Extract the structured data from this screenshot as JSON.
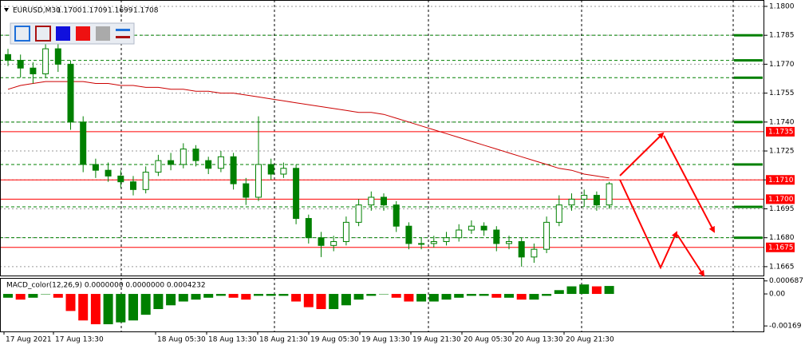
{
  "chart_data": {
    "type": "candlestick",
    "symbol": "EURUSD,M30",
    "quote": [
      "1.1700",
      "1.1709",
      "1.1699",
      "1.1708"
    ],
    "color": "#008000",
    "open": [
      1.1775,
      1.1772,
      1.1768,
      1.1765,
      1.1778,
      1.177,
      1.174,
      1.1718,
      1.1715,
      1.1712,
      1.1709,
      1.1705,
      1.1714,
      1.172,
      1.1718,
      1.1726,
      1.172,
      1.1716,
      1.1722,
      1.1708,
      1.1701,
      1.1718,
      1.1713,
      1.1716,
      1.169,
      1.168,
      1.1676,
      1.1678,
      1.1688,
      1.1697,
      1.1701,
      1.1697,
      1.1686,
      1.1677,
      1.1677,
      1.1678,
      1.168,
      1.1684,
      1.1686,
      1.1684,
      1.1677,
      1.1678,
      1.167,
      1.1674,
      1.1688,
      1.1697,
      1.17,
      1.1702,
      1.1697
    ],
    "high": [
      1.1778,
      1.1775,
      1.1771,
      1.1785,
      1.1781,
      1.1772,
      1.1743,
      1.1721,
      1.1719,
      1.1715,
      1.1712,
      1.1717,
      1.1723,
      1.1724,
      1.1729,
      1.1728,
      1.1722,
      1.1725,
      1.1724,
      1.1711,
      1.1743,
      1.1721,
      1.1719,
      1.1718,
      1.1692,
      1.1683,
      1.1681,
      1.1691,
      1.17,
      1.1704,
      1.1703,
      1.1699,
      1.1688,
      1.168,
      1.1681,
      1.1683,
      1.1687,
      1.1689,
      1.1688,
      1.1686,
      1.1681,
      1.168,
      1.1677,
      1.1691,
      1.1702,
      1.1703,
      1.1705,
      1.1704,
      1.1709
    ],
    "low": [
      1.1769,
      1.1763,
      1.176,
      1.1763,
      1.1766,
      1.1736,
      1.1714,
      1.1711,
      1.1709,
      1.1706,
      1.1702,
      1.1703,
      1.1712,
      1.1715,
      1.1716,
      1.1717,
      1.1713,
      1.1714,
      1.1705,
      1.1697,
      1.1699,
      1.171,
      1.1711,
      1.1687,
      1.1677,
      1.167,
      1.1673,
      1.1676,
      1.1686,
      1.1694,
      1.1694,
      1.1683,
      1.1674,
      1.1674,
      1.1675,
      1.1676,
      1.1678,
      1.1682,
      1.1681,
      1.1673,
      1.1674,
      1.1665,
      1.1667,
      1.1672,
      1.1686,
      1.1694,
      1.1696,
      1.1694,
      1.1695
    ],
    "close": [
      1.1772,
      1.1768,
      1.1765,
      1.1778,
      1.177,
      1.174,
      1.1718,
      1.1715,
      1.1712,
      1.1709,
      1.1705,
      1.1714,
      1.172,
      1.1718,
      1.1726,
      1.172,
      1.1716,
      1.1722,
      1.1708,
      1.1701,
      1.1718,
      1.1713,
      1.1716,
      1.169,
      1.168,
      1.1676,
      1.1678,
      1.1688,
      1.1697,
      1.1701,
      1.1697,
      1.1686,
      1.1677,
      1.1677,
      1.1678,
      1.168,
      1.1684,
      1.1686,
      1.1684,
      1.1677,
      1.1678,
      1.167,
      1.1674,
      1.1688,
      1.1697,
      1.17,
      1.1702,
      1.1697,
      1.1708
    ],
    "ma": {
      "color": "#cc0000",
      "values": [
        1.1757,
        1.1759,
        1.176,
        1.1761,
        1.1761,
        1.1761,
        1.1761,
        1.176,
        1.176,
        1.1759,
        1.1759,
        1.1758,
        1.1758,
        1.1757,
        1.1757,
        1.1756,
        1.1756,
        1.1755,
        1.1755,
        1.1754,
        1.1753,
        1.1752,
        1.1751,
        1.175,
        1.1749,
        1.1748,
        1.1747,
        1.1746,
        1.1745,
        1.1745,
        1.1744,
        1.1742,
        1.174,
        1.1738,
        1.1736,
        1.1734,
        1.1732,
        1.173,
        1.1728,
        1.1726,
        1.1724,
        1.1722,
        1.172,
        1.1718,
        1.1716,
        1.1715,
        1.1713,
        1.1712,
        1.1711
      ]
    },
    "ylim": [
      1.16604,
      1.18033
    ],
    "yticks": [
      {
        "value": 1.18,
        "label": "1.1800"
      },
      1.1785,
      {
        "value": 1.177,
        "label": "1.1770"
      },
      1.1755,
      {
        "value": 1.174,
        "label": "1.1740"
      },
      1.1725,
      {
        "value": 1.171,
        "label": "1.1710"
      },
      1.1695,
      {
        "value": 1.168,
        "label": "1.1680"
      },
      1.1665
    ],
    "grid": true,
    "levels": {
      "color": "#ff0000",
      "values": [
        1.1735,
        1.171,
        1.17,
        1.1675
      ],
      "value_labels": [
        "1.1735",
        "1.1710",
        "1.1700",
        "1.1675"
      ]
    },
    "zones": {
      "color": "#008000",
      "values": [
        1.1785,
        1.1772,
        1.1763,
        1.174,
        1.1718,
        1.1696,
        1.168
      ]
    },
    "x_labels": [
      "17 Aug 2021",
      "17 Aug 13:30",
      "18 Aug 05:30",
      "18 Aug 13:30",
      "18 Aug 21:30",
      "19 Aug 05:30",
      "19 Aug 13:30",
      "19 Aug 21:30",
      "20 Aug 05:30",
      "20 Aug 13:30",
      "20 Aug 21:30"
    ],
    "macd": {
      "type": "histogram",
      "title": "MACD_color(12,26,9) 0.0000000 0.0000000 0.0004232",
      "up_color": "#008000",
      "down_color": "#ff0000",
      "values": [
        -0.0002,
        -0.0003,
        -0.0002,
        0,
        -0.0002,
        -0.0009,
        -0.0014,
        -0.0016,
        -0.0016,
        -0.0015,
        -0.0014,
        -0.0011,
        -0.0008,
        -0.0006,
        -0.0004,
        -0.0003,
        -0.0002,
        -0.0001,
        -0.0002,
        -0.0003,
        -0.0001,
        -0.0001,
        -0.0001,
        -0.0004,
        -0.0007,
        -0.0008,
        -0.0008,
        -0.0006,
        -0.0003,
        -0.0001,
        0,
        -0.0002,
        -0.0004,
        -0.0004,
        -0.0004,
        -0.0003,
        -0.0002,
        -0.0001,
        -0.0001,
        -0.0002,
        -0.0002,
        -0.0003,
        -0.0003,
        -0.0001,
        0.0002,
        0.0004,
        0.0005,
        0.0004,
        0.00042
      ],
      "ylim": [
        -0.00198,
        0.000845
      ],
      "yticks": [
        0.000687,
        {
          "value": 0,
          "label": "0.00"
        },
        -0.00169
      ]
    }
  }
}
